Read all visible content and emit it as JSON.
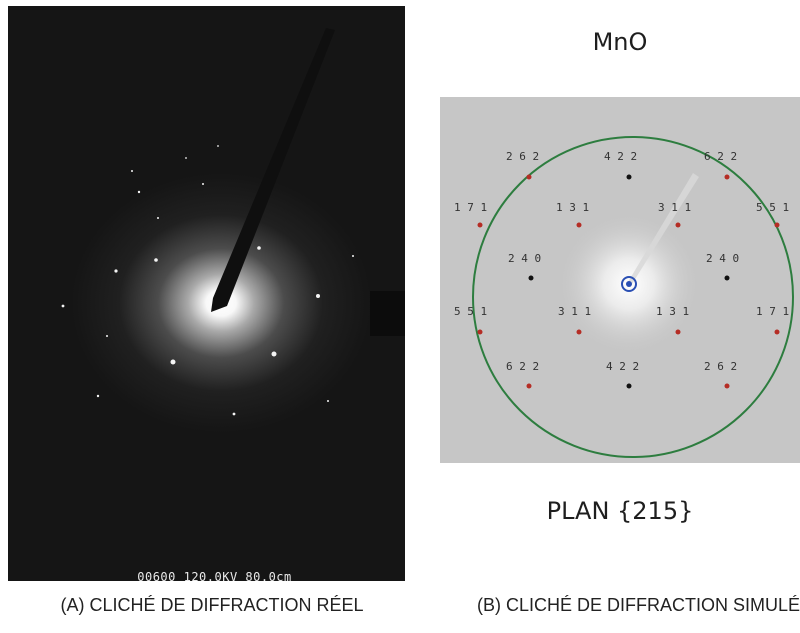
{
  "real_pattern": {
    "caption": "00600 120.0KV 80.0cm"
  },
  "simulated_pattern": {
    "title": "MnO",
    "plane": "PLAN {215}",
    "reflections": [
      {
        "label": "2 6 2"
      },
      {
        "label": "4 2 2"
      },
      {
        "label": "6 2 2"
      },
      {
        "label": "1 7 1"
      },
      {
        "label": "1 3 1"
      },
      {
        "label": "3 1 1"
      },
      {
        "label": "5 5 1"
      },
      {
        "label": "2 4 0"
      },
      {
        "label": "2 4 0"
      },
      {
        "label": "5 5 1"
      },
      {
        "label": "3 1 1"
      },
      {
        "label": "1 3 1"
      },
      {
        "label": "1 7 1"
      },
      {
        "label": "6 2 2"
      },
      {
        "label": "4 2 2"
      },
      {
        "label": "2 6 2"
      }
    ],
    "colors": {
      "background": "#c6c6c6",
      "circle": "#2d7d3f",
      "spot_red": "#b52d25",
      "spot_black": "#111111",
      "center": "#2a4fb3"
    }
  },
  "captions": {
    "a": "(A) CLICHÉ DE DIFFRACTION RÉEL",
    "b": "(B) CLICHÉ DE DIFFRACTION SIMULÉ"
  }
}
